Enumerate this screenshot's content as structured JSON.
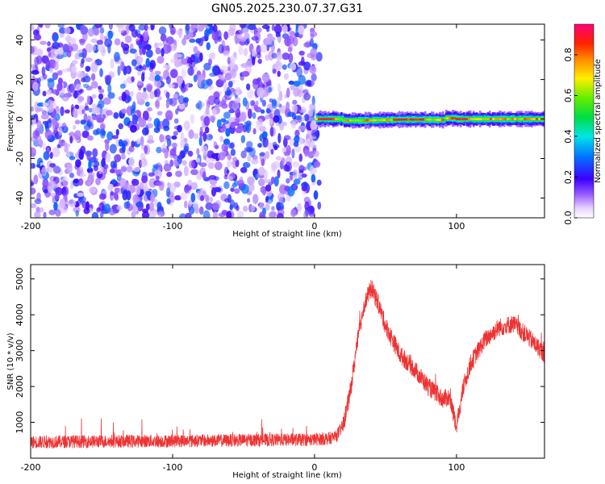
{
  "figure": {
    "title": "GN05.2025.230.07.37.G31"
  },
  "chart_data": [
    {
      "type": "heatmap",
      "name": "spectrogram",
      "xlabel": "Height of straight line (km)",
      "ylabel": "Frequency (Hz)",
      "xlim": [
        -200,
        162
      ],
      "ylim": [
        -50,
        48
      ],
      "x_ticks": [
        -200,
        -100,
        0,
        100
      ],
      "y_ticks": [
        -40,
        -20,
        0,
        20,
        40
      ],
      "colorbar": {
        "label": "Normalized spectral amplitude",
        "range": [
          0,
          0.95
        ],
        "ticks": [
          0,
          0.2,
          0.4,
          0.6,
          0.8
        ],
        "tick_labels": [
          "0.0",
          "0.2",
          "0.4",
          "0.6",
          "0.8"
        ]
      },
      "regions": [
        {
          "x_range": [
            -200,
            0
          ],
          "description": "noise",
          "amplitude_range": [
            0.05,
            0.3
          ]
        },
        {
          "x_range": [
            0,
            162
          ],
          "description": "carrier line near 0 Hz",
          "frequency_hz": 0,
          "peak_amplitude": 0.9
        }
      ],
      "grid": false
    },
    {
      "type": "line",
      "name": "snr",
      "xlabel": "Height of straight line (km)",
      "ylabel": "SNR (10 * v/v)",
      "xlim": [
        -200,
        162
      ],
      "ylim": [
        0,
        5400
      ],
      "x_ticks": [
        -200,
        -100,
        0,
        100
      ],
      "y_ticks": [
        1000,
        2000,
        3000,
        4000,
        5000
      ],
      "color": "#ee3333",
      "series": [
        {
          "x": [
            -200,
            -150,
            -100,
            -50,
            0,
            10,
            15,
            20,
            25,
            30,
            35,
            40,
            45,
            50,
            60,
            70,
            80,
            90,
            95,
            100,
            105,
            110,
            120,
            130,
            140,
            150,
            162
          ],
          "values": [
            450,
            470,
            480,
            500,
            520,
            550,
            600,
            900,
            1800,
            3200,
            4300,
            4750,
            4300,
            3700,
            2900,
            2500,
            2000,
            1650,
            1700,
            900,
            2000,
            2650,
            3300,
            3650,
            3750,
            3400,
            2900
          ]
        }
      ],
      "grid": false
    }
  ]
}
